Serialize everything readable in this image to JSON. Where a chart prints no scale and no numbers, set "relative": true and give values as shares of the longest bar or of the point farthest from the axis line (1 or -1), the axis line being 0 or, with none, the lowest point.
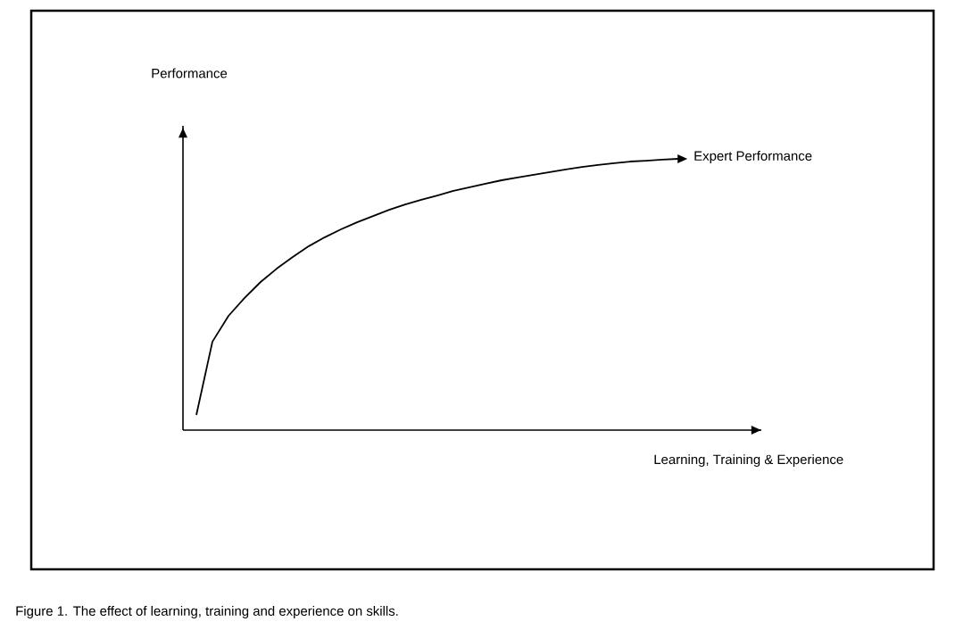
{
  "chart_data": {
    "type": "line",
    "relative": true,
    "xlabel": "Learning, Training & Experience",
    "categories": [
      null,
      null,
      null,
      null,
      null,
      null,
      null,
      null,
      null,
      null,
      null,
      null,
      null,
      null,
      null,
      null,
      null,
      null,
      null,
      null,
      null,
      null,
      null,
      null,
      null,
      null,
      null,
      null,
      null,
      null,
      null
    ],
    "series": [
      {
        "color": "#000000",
        "values": [
          0.056,
          0.326,
          0.421,
          0.487,
          0.546,
          0.595,
          0.638,
          0.678,
          0.711,
          0.74,
          0.766,
          0.789,
          0.812,
          0.832,
          0.849,
          0.865,
          0.882,
          0.895,
          0.908,
          0.921,
          0.931,
          0.941,
          0.951,
          0.961,
          0.97,
          0.977,
          0.984,
          0.99,
          0.993,
          0.997,
          1.0
        ]
      }
    ],
    "annotations": [
      "Performance",
      "Expert Performance",
      "Figure 1. The effect of learning, training and experience on skills."
    ]
  }
}
